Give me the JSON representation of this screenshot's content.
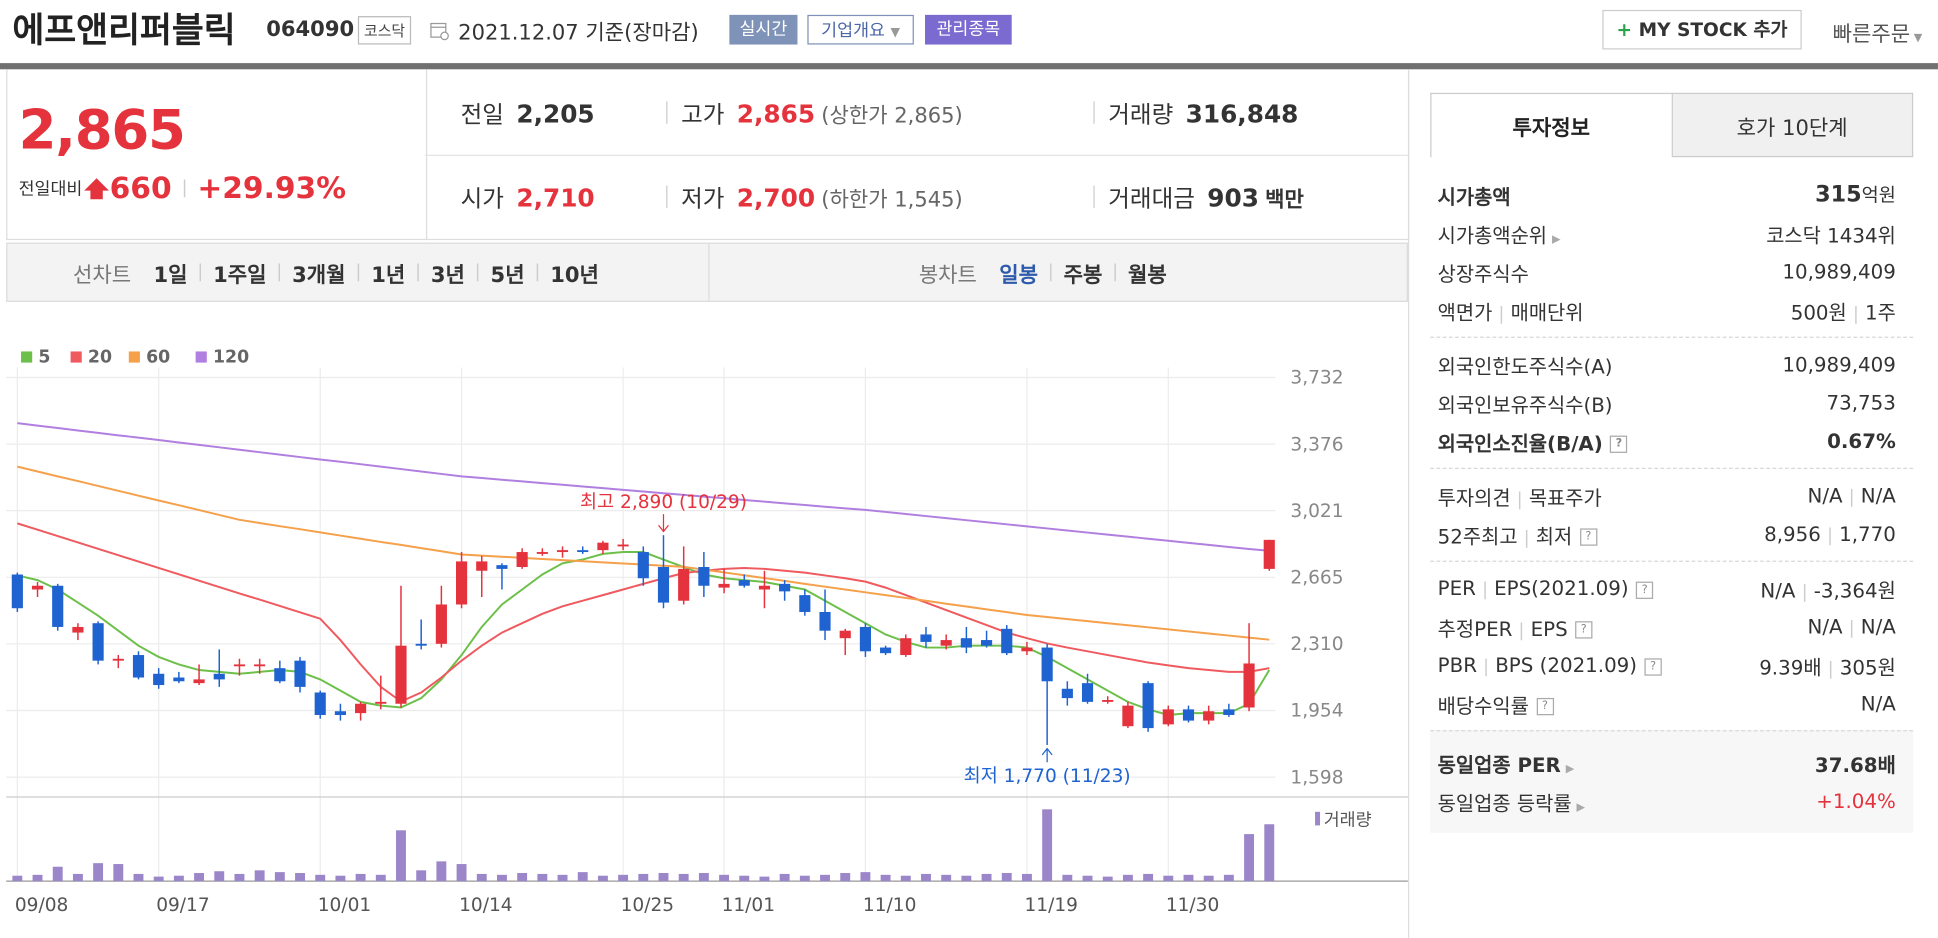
{
  "header": {
    "name": "에프앤리퍼블릭",
    "code": "064090",
    "market": "코스닥",
    "date": "2021.12.07 기준(장마감)",
    "buttons": [
      "실시간",
      "기업개요",
      "관리종목"
    ],
    "mystock": "MY STOCK 추가",
    "quick": "빠른주문"
  },
  "price": {
    "current": "2,865",
    "change_label": "전일대비",
    "change": "660",
    "rate": "+29.93%"
  },
  "quote": [
    [
      {
        "label": "전일",
        "value": "2,205"
      },
      {
        "label": "고가",
        "value": "2,865",
        "note": "(상한가 2,865)"
      },
      {
        "label": "거래량",
        "value": "316,848"
      }
    ],
    [
      {
        "label": "시가",
        "value": "2,710"
      },
      {
        "label": "저가",
        "value": "2,700",
        "note": "(하한가 1,545)"
      },
      {
        "label": "거래대금",
        "value": "903",
        "note": "백만"
      }
    ]
  ],
  "chart_tabs": {
    "line_label": "선차트",
    "line": [
      "1일",
      "1주일",
      "3개월",
      "1년",
      "3년",
      "5년",
      "10년"
    ],
    "candle_label": "봉차트",
    "candle": [
      "일봉",
      "주봉",
      "월봉"
    ],
    "selected_candle": 0
  },
  "side": {
    "tabs": [
      "투자정보",
      "호가 10단계"
    ],
    "sections": [
      [
        {
          "label": [
            "시가총액"
          ],
          "value": [
            "315"
          ],
          "unit": "억원",
          "bold": true
        },
        {
          "label": [
            "시가총액순위"
          ],
          "value": [
            "코스닥 1434위"
          ],
          "arrow": true
        },
        {
          "label": [
            "상장주식수"
          ],
          "value": [
            "10,989,409"
          ]
        },
        {
          "label": [
            "액면가",
            "매매단위"
          ],
          "value": [
            "500원",
            "1주"
          ]
        }
      ],
      [
        {
          "label": [
            "외국인한도주식수(A)"
          ],
          "value": [
            "10,989,409"
          ]
        },
        {
          "label": [
            "외국인보유주식수(B)"
          ],
          "value": [
            "73,753"
          ]
        },
        {
          "label": [
            "외국인소진율(B/A)"
          ],
          "value": [
            "0.67%"
          ],
          "bold": true,
          "help": true
        }
      ],
      [
        {
          "label": [
            "투자의견",
            "목표주가"
          ],
          "value": [
            "N/A",
            "N/A"
          ]
        },
        {
          "label": [
            "52주최고",
            "최저"
          ],
          "value": [
            "8,956",
            "1,770"
          ],
          "help": true
        }
      ],
      [
        {
          "label": [
            "PER",
            "EPS(2021.09)"
          ],
          "value": [
            "N/A",
            "-3,364원"
          ],
          "help": true
        },
        {
          "label": [
            "추정PER",
            "EPS"
          ],
          "value": [
            "N/A",
            "N/A"
          ],
          "help": true
        },
        {
          "label": [
            "PBR",
            "BPS (2021.09)"
          ],
          "value": [
            "9.39배",
            "305원"
          ],
          "help": true
        },
        {
          "label": [
            "배당수익률"
          ],
          "value": [
            "N/A"
          ],
          "help": true
        }
      ],
      [
        {
          "label": [
            "동일업종 PER"
          ],
          "value": [
            "37.68배"
          ],
          "bold": true,
          "arrow": true
        },
        {
          "label": [
            "동일업종 등락률"
          ],
          "value": [
            "+1.04%"
          ],
          "arrow": true,
          "color": "#e5333d"
        }
      ]
    ]
  },
  "chart_data": {
    "type": "candlestick",
    "categories": [
      "09/08",
      null,
      null,
      null,
      null,
      null,
      null,
      "09/17",
      null,
      null,
      null,
      null,
      null,
      null,
      null,
      "10/01",
      null,
      null,
      null,
      null,
      null,
      null,
      "10/14",
      null,
      null,
      null,
      null,
      null,
      null,
      null,
      "10/25",
      null,
      null,
      null,
      null,
      "11/01",
      null,
      null,
      null,
      null,
      null,
      null,
      "11/10",
      null,
      null,
      null,
      null,
      null,
      null,
      null,
      "11/19",
      null,
      null,
      null,
      null,
      null,
      null,
      "11/30",
      null,
      null,
      null,
      null,
      null
    ],
    "open": [
      2680,
      2600,
      2620,
      2370,
      2420,
      2220,
      2250,
      2150,
      2130,
      2100,
      2150,
      2190,
      2190,
      2180,
      2220,
      2050,
      1950,
      1940,
      1990,
      1990,
      2310,
      2310,
      2520,
      2700,
      2730,
      2720,
      2790,
      2800,
      2810,
      2810,
      2830,
      2800,
      2720,
      2540,
      2720,
      2610,
      2650,
      2600,
      2630,
      2570,
      2480,
      2340,
      2400,
      2290,
      2250,
      2360,
      2300,
      2340,
      2330,
      2390,
      2270,
      2290,
      2070,
      2100,
      2000,
      1870,
      2100,
      1880,
      1960,
      1900,
      1960,
      1970,
      2710
    ],
    "high": [
      2690,
      2640,
      2630,
      2420,
      2430,
      2250,
      2270,
      2180,
      2160,
      2200,
      2280,
      2230,
      2230,
      2220,
      2240,
      2060,
      1990,
      2000,
      2140,
      2620,
      2440,
      2620,
      2800,
      2780,
      2740,
      2820,
      2820,
      2830,
      2830,
      2860,
      2870,
      2830,
      2890,
      2830,
      2800,
      2710,
      2680,
      2700,
      2650,
      2600,
      2600,
      2390,
      2420,
      2300,
      2360,
      2400,
      2360,
      2400,
      2380,
      2410,
      2320,
      2310,
      2110,
      2150,
      2030,
      2000,
      2110,
      1980,
      1980,
      1980,
      1990,
      2420,
      2865
    ],
    "low": [
      2480,
      2560,
      2380,
      2330,
      2200,
      2180,
      2120,
      2070,
      2100,
      2090,
      2080,
      2140,
      2150,
      2100,
      2050,
      1910,
      1900,
      1900,
      1960,
      1970,
      2280,
      2290,
      2500,
      2560,
      2600,
      2710,
      2780,
      2770,
      2790,
      2790,
      2810,
      2620,
      2500,
      2520,
      2560,
      2580,
      2610,
      2500,
      2540,
      2460,
      2330,
      2250,
      2240,
      2250,
      2240,
      2290,
      2280,
      2260,
      2290,
      2250,
      2250,
      1770,
      1980,
      1990,
      1990,
      1860,
      1840,
      1870,
      1890,
      1880,
      1920,
      1950,
      2700
    ],
    "close": [
      2500,
      2620,
      2400,
      2400,
      2220,
      2230,
      2130,
      2090,
      2110,
      2120,
      2120,
      2200,
      2200,
      2110,
      2080,
      1930,
      1930,
      1990,
      2000,
      2300,
      2300,
      2520,
      2750,
      2750,
      2710,
      2800,
      2800,
      2810,
      2800,
      2850,
      2840,
      2660,
      2530,
      2710,
      2620,
      2630,
      2620,
      2620,
      2590,
      2480,
      2380,
      2380,
      2270,
      2260,
      2340,
      2320,
      2330,
      2290,
      2300,
      2260,
      2290,
      2110,
      2020,
      2000,
      2010,
      1980,
      1860,
      1960,
      1900,
      1950,
      1930,
      2205,
      2865
    ],
    "up_color": "#e5333d",
    "down_color": "#1f63d1",
    "series": [
      {
        "name": "5",
        "color": "#6cc04a",
        "values": [
          2675,
          2650,
          2600,
          2530,
          2460,
          2380,
          2300,
          2240,
          2200,
          2170,
          2160,
          2150,
          2160,
          2170,
          2160,
          2120,
          2060,
          2000,
          1980,
          1970,
          2020,
          2120,
          2250,
          2400,
          2520,
          2600,
          2680,
          2740,
          2760,
          2790,
          2800,
          2800,
          2760,
          2720,
          2680,
          2660,
          2650,
          2640,
          2620,
          2600,
          2540,
          2480,
          2420,
          2360,
          2320,
          2290,
          2290,
          2300,
          2300,
          2300,
          2290,
          2240,
          2180,
          2120,
          2060,
          2000,
          1960,
          1930,
          1940,
          1940,
          1940,
          1990,
          2170
        ]
      },
      {
        "name": "20",
        "color": "#ef5a5f",
        "values": [
          2953,
          2919,
          2885,
          2851,
          2817,
          2783,
          2749,
          2715,
          2681,
          2647,
          2613,
          2579,
          2546,
          2512,
          2478,
          2444,
          2330,
          2200,
          2080,
          2002,
          2050,
          2130,
          2220,
          2300,
          2370,
          2420,
          2470,
          2510,
          2540,
          2570,
          2600,
          2630,
          2660,
          2688,
          2700,
          2710,
          2715,
          2710,
          2700,
          2690,
          2675,
          2660,
          2642,
          2610,
          2570,
          2530,
          2490,
          2450,
          2410,
          2370,
          2340,
          2312,
          2290,
          2270,
          2250,
          2230,
          2210,
          2195,
          2180,
          2170,
          2160,
          2160,
          2180
        ]
      },
      {
        "name": "60",
        "color": "#f5a04a",
        "values": [
          3256,
          3230,
          3204,
          3179,
          3153,
          3127,
          3101,
          3075,
          3050,
          3024,
          2998,
          2972,
          2955,
          2938,
          2922,
          2905,
          2888,
          2871,
          2854,
          2838,
          2821,
          2804,
          2787,
          2781,
          2775,
          2769,
          2763,
          2757,
          2751,
          2745,
          2739,
          2733,
          2727,
          2721,
          2706,
          2691,
          2676,
          2661,
          2646,
          2630,
          2615,
          2600,
          2585,
          2570,
          2555,
          2540,
          2524,
          2509,
          2494,
          2479,
          2464,
          2453,
          2442,
          2431,
          2420,
          2409,
          2398,
          2387,
          2376,
          2365,
          2354,
          2343,
          2332
        ]
      },
      {
        "name": "120",
        "color": "#b07fe0",
        "values": [
          3488,
          3475,
          3462,
          3449,
          3436,
          3423,
          3411,
          3398,
          3385,
          3372,
          3359,
          3346,
          3333,
          3320,
          3307,
          3294,
          3282,
          3269,
          3256,
          3243,
          3230,
          3217,
          3204,
          3195,
          3186,
          3177,
          3168,
          3159,
          3150,
          3141,
          3132,
          3123,
          3114,
          3105,
          3096,
          3087,
          3078,
          3069,
          3060,
          3051,
          3042,
          3033,
          3025,
          3014,
          3003,
          2992,
          2981,
          2970,
          2959,
          2948,
          2937,
          2926,
          2915,
          2904,
          2893,
          2882,
          2871,
          2860,
          2849,
          2838,
          2827,
          2816,
          2807
        ]
      }
    ],
    "volume": {
      "name": "거래량",
      "color": "#9b86c9",
      "values": [
        30000,
        35000,
        80000,
        40000,
        100000,
        95000,
        40000,
        25000,
        30000,
        45000,
        55000,
        40000,
        60000,
        50000,
        45000,
        35000,
        30000,
        40000,
        35000,
        283000,
        60000,
        110000,
        95000,
        40000,
        35000,
        45000,
        40000,
        35000,
        50000,
        30000,
        35000,
        40000,
        45000,
        40000,
        45000,
        35000,
        30000,
        25000,
        40000,
        30000,
        35000,
        45000,
        50000,
        35000,
        30000,
        40000,
        35000,
        30000,
        40000,
        45000,
        40000,
        400000,
        35000,
        30000,
        25000,
        35000,
        40000,
        30000,
        35000,
        30000,
        35000,
        262000,
        316848
      ]
    },
    "annotations": [
      "최고 2,890 (10/29)",
      "최저 1,770 (11/23)"
    ],
    "ylim": [
      1499,
      3785
    ],
    "yticks": [
      {
        "value": 3732,
        "label": "3,732"
      },
      {
        "value": 3376,
        "label": "3,376"
      },
      {
        "value": 3021,
        "label": "3,021"
      },
      {
        "value": 2665,
        "label": "2,665"
      },
      {
        "value": 2310,
        "label": "2,310"
      },
      {
        "value": 1954,
        "label": "1,954"
      },
      {
        "value": 1598,
        "label": "1,598"
      }
    ],
    "grid": true
  }
}
